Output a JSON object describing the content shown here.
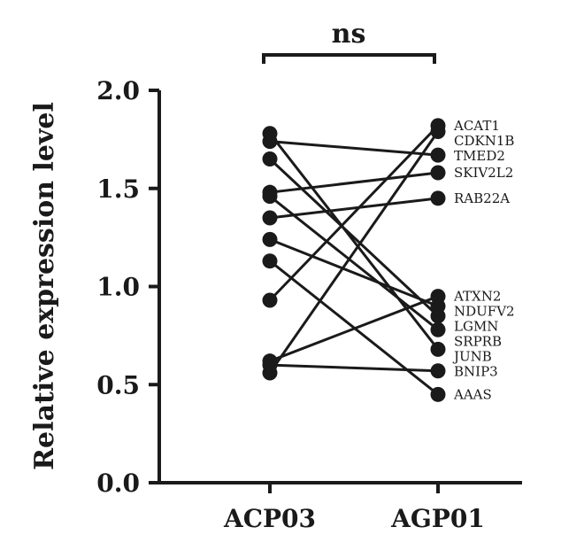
{
  "chart_data": {
    "type": "line",
    "ylabel": "Relative expression level",
    "ylim": [
      0.0,
      2.0
    ],
    "yticks": [
      "0.0",
      "0.5",
      "1.0",
      "1.5",
      "2.0"
    ],
    "categories": [
      "ACP03",
      "AGP01"
    ],
    "significance": "ns",
    "color": "#1a1a1a",
    "genes": [
      {
        "name": "ACAT1",
        "values": [
          0.93,
          1.82
        ]
      },
      {
        "name": "CDKN1B",
        "values": [
          0.56,
          1.79
        ]
      },
      {
        "name": "TMED2",
        "values": [
          1.74,
          1.67
        ]
      },
      {
        "name": "SKIV2L2",
        "values": [
          1.48,
          1.58
        ]
      },
      {
        "name": "RAB22A",
        "values": [
          1.35,
          1.45
        ]
      },
      {
        "name": "ATXN2",
        "values": [
          0.62,
          0.95
        ]
      },
      {
        "name": "NDUFV2",
        "values": [
          1.24,
          0.9
        ]
      },
      {
        "name": "LGMN",
        "values": [
          1.65,
          0.85
        ]
      },
      {
        "name": "SRPRB",
        "values": [
          1.46,
          0.78
        ]
      },
      {
        "name": "JUNB",
        "values": [
          1.78,
          0.68
        ]
      },
      {
        "name": "BNIP3",
        "values": [
          0.6,
          0.57
        ]
      },
      {
        "name": "AAAS",
        "values": [
          1.13,
          0.45
        ]
      }
    ]
  }
}
